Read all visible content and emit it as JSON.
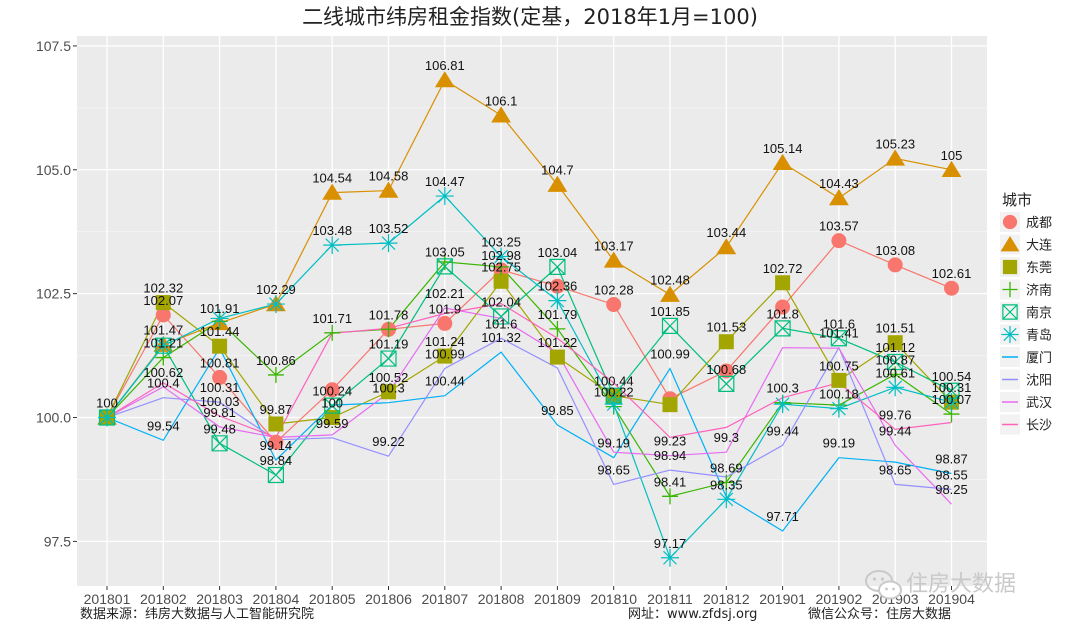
{
  "chart_data": {
    "type": "line",
    "title": "二线城市纬房租金指数(定基，2018年1月=100)",
    "xlabel": "",
    "ylabel": "",
    "ylim": [
      96.6,
      107.7
    ],
    "y_ticks": [
      97.5,
      100.0,
      102.5,
      105.0,
      107.5
    ],
    "y_tick_labels": [
      "97.5",
      "100.0",
      "102.5",
      "105.0",
      "107.5"
    ],
    "grid": true,
    "legend_position": "right",
    "legend_title": "城市",
    "categories": [
      "201801",
      "201802",
      "201803",
      "201804",
      "201805",
      "201806",
      "201807",
      "201808",
      "201809",
      "201810",
      "201811",
      "201812",
      "201901",
      "201902",
      "201903",
      "201904"
    ],
    "series": [
      {
        "name": "成都",
        "color": "#f8766d",
        "marker": "circle",
        "values": [
          100,
          102.07,
          100.81,
          99.5,
          100.56,
          101.78,
          101.9,
          102.98,
          102.65,
          102.28,
          100.38,
          100.94,
          102.23,
          103.57,
          103.08,
          102.61
        ],
        "labels": [
          "",
          "102.07",
          "100.81",
          "",
          "",
          "101.78",
          "101.9",
          "102.98",
          "",
          "102.28",
          "",
          "",
          "",
          "103.57",
          "103.08",
          "102.61"
        ]
      },
      {
        "name": "大连",
        "color": "#d89000",
        "marker": "triangle",
        "values": [
          100,
          101.47,
          101.91,
          102.29,
          104.54,
          104.58,
          106.81,
          106.1,
          104.7,
          103.17,
          102.48,
          103.44,
          105.14,
          104.43,
          105.23,
          105
        ],
        "labels": [
          "100",
          "101.47",
          "101.91",
          "102.29",
          "104.54",
          "104.58",
          "106.81",
          "106.1",
          "104.7",
          "103.17",
          "102.48",
          "103.44",
          "105.14",
          "104.43",
          "105.23",
          "105"
        ]
      },
      {
        "name": "东莞",
        "color": "#a3a500",
        "marker": "square",
        "values": [
          100,
          102.32,
          101.44,
          99.87,
          100,
          100.52,
          101.24,
          102.75,
          101.22,
          100.44,
          100.26,
          101.53,
          102.72,
          100.75,
          101.51,
          100.31
        ],
        "labels": [
          "",
          "102.32",
          "101.44",
          "99.87",
          "100",
          "100.52",
          "101.24",
          "102.75",
          "101.22",
          "100.44",
          "",
          "101.53",
          "102.72",
          "100.75",
          "101.51",
          "100.31"
        ]
      },
      {
        "name": "济南",
        "color": "#39b600",
        "marker": "plus",
        "values": [
          100,
          101.21,
          101.94,
          100.86,
          101.71,
          101.78,
          103.14,
          103.04,
          101.79,
          100.22,
          98.41,
          98.69,
          100.3,
          100.25,
          100.87,
          100.07
        ],
        "labels": [
          "",
          "101.21",
          "",
          "100.86",
          "101.71",
          "",
          "",
          "",
          "101.79",
          "100.22",
          "98.41",
          "98.69",
          "100.3",
          "",
          "100.87",
          "100.07"
        ]
      },
      {
        "name": "南京",
        "color": "#00bf7d",
        "marker": "square-x",
        "values": [
          100,
          101.45,
          99.48,
          98.84,
          100.24,
          101.19,
          103.05,
          102.04,
          103.04,
          100.44,
          101.85,
          100.68,
          101.8,
          101.6,
          101.12,
          100.54
        ],
        "labels": [
          "",
          "",
          "99.48",
          "98.84",
          "100.24",
          "101.19",
          "103.05",
          "102.04",
          "103.04",
          "",
          "101.85",
          "100.68",
          "101.8",
          "101.6",
          "101.12",
          "100.54"
        ]
      },
      {
        "name": "青岛",
        "color": "#00bfc4",
        "marker": "star",
        "values": [
          100,
          101.45,
          102.0,
          102.29,
          103.48,
          103.52,
          104.47,
          103.25,
          102.36,
          100.27,
          97.17,
          98.35,
          100.27,
          100.18,
          100.61,
          100.31
        ],
        "labels": [
          "",
          "",
          "",
          "",
          "103.48",
          "103.52",
          "104.47",
          "103.25",
          "102.36",
          "",
          "97.17",
          "98.35",
          "",
          "100.18",
          "100.61",
          ""
        ]
      },
      {
        "name": "厦门",
        "color": "#00b0f6",
        "marker": "none",
        "values": [
          100,
          99.54,
          101.4,
          99.14,
          100.25,
          100.3,
          100.44,
          101.32,
          99.85,
          99.19,
          100.99,
          98.4,
          97.71,
          99.19,
          99.1,
          98.87
        ],
        "labels": [
          "",
          "99.54",
          "",
          "99.14",
          "",
          "100.3",
          "100.44",
          "101.32",
          "99.85",
          "99.19",
          "100.99",
          "",
          "97.71",
          "99.19",
          "",
          "98.87"
        ]
      },
      {
        "name": "沈阳",
        "color": "#9590ff",
        "marker": "none",
        "values": [
          100,
          100.4,
          100.31,
          99.55,
          99.59,
          99.22,
          100.99,
          101.6,
          101.0,
          98.65,
          98.94,
          98.8,
          99.44,
          101.41,
          98.65,
          98.55
        ],
        "labels": [
          "",
          "100.4",
          "100.31",
          "",
          "99.59",
          "99.22",
          "100.99",
          "101.6",
          "",
          "98.65",
          "98.94",
          "",
          "99.44",
          "101.41",
          "98.65",
          "98.55"
        ]
      },
      {
        "name": "武汉",
        "color": "#e76bf3",
        "marker": "none",
        "values": [
          100,
          100.62,
          99.81,
          99.6,
          99.65,
          100.5,
          102.21,
          102.0,
          101.3,
          99.3,
          99.23,
          99.3,
          101.41,
          101.4,
          99.44,
          98.25
        ],
        "labels": [
          "",
          "100.62",
          "99.81",
          "",
          "",
          "",
          "102.21",
          "",
          "",
          "",
          "99.23",
          "99.3",
          "",
          "",
          "99.44",
          "98.25"
        ]
      },
      {
        "name": "长沙",
        "color": "#ff62bc",
        "marker": "none",
        "values": [
          100,
          100.7,
          100.03,
          99.6,
          101.7,
          101.8,
          102.1,
          102.3,
          101.6,
          100.7,
          99.6,
          99.8,
          100.4,
          100.7,
          99.76,
          99.9
        ],
        "labels": [
          "",
          "",
          "100.03",
          "",
          "",
          "",
          "",
          "",
          "",
          "",
          "",
          "",
          "",
          "",
          "99.76",
          ""
        ]
      }
    ]
  },
  "footer": {
    "source": "数据来源：纬房大数据与人工智能研究院",
    "website": "网址：www.zfdsj.org",
    "wechat": "微信公众号：住房大数据"
  },
  "watermark": {
    "text": "住房大数据",
    "icon": "wechat-icon"
  }
}
